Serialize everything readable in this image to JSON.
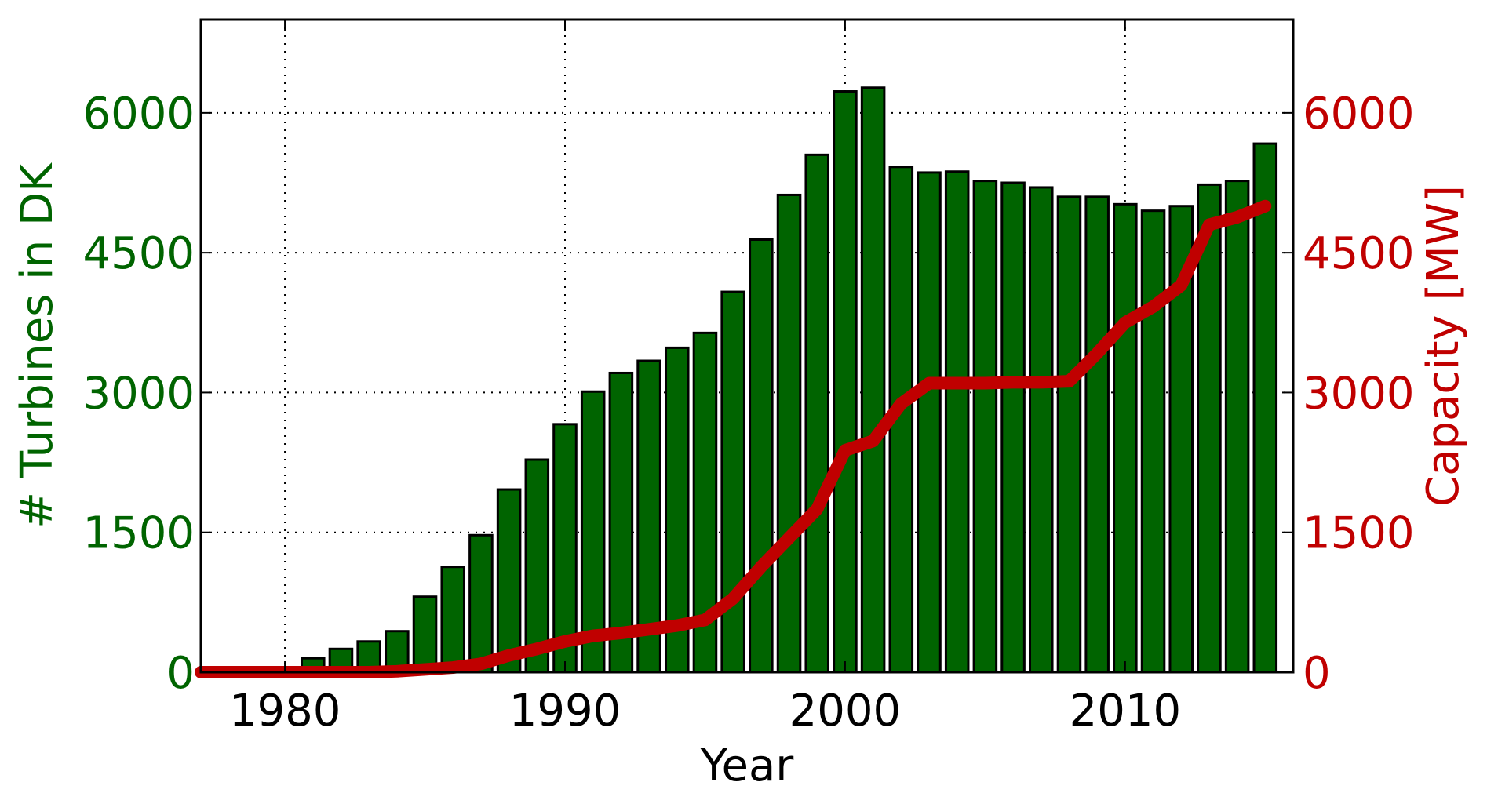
{
  "chart_data": {
    "type": "bar",
    "xlabel": "Year",
    "ylabel_left": "# Turbines in DK",
    "ylabel_right": "Capacity [MW]",
    "xlim": [
      1977,
      2016
    ],
    "ylim_left": [
      0,
      7000
    ],
    "ylim_right": [
      0,
      7000
    ],
    "x_ticks": [
      1980,
      1990,
      2000,
      2010
    ],
    "y_ticks_left": [
      0,
      1500,
      3000,
      4500,
      6000
    ],
    "y_ticks_right": [
      0,
      1500,
      3000,
      4500,
      6000
    ],
    "grid": true,
    "colors": {
      "bars": "#006400",
      "bar_edge": "#000000",
      "line": "#c00000",
      "left_axis_text": "#006400",
      "right_axis_text": "#c00000",
      "x_axis_text": "#000000"
    },
    "series": [
      {
        "type": "bar",
        "axis": "left",
        "x": [
          1977,
          1978,
          1979,
          1980,
          1981,
          1982,
          1983,
          1984,
          1985,
          1986,
          1987,
          1988,
          1989,
          1990,
          1991,
          1992,
          1993,
          1994,
          1995,
          1996,
          1997,
          1998,
          1999,
          2000,
          2001,
          2002,
          2003,
          2004,
          2005,
          2006,
          2007,
          2008,
          2009,
          2010,
          2011,
          2012,
          2013,
          2014,
          2015
        ],
        "values": [
          0,
          0,
          0,
          0,
          150,
          250,
          330,
          440,
          810,
          1130,
          1470,
          1960,
          2280,
          2660,
          3010,
          3210,
          3340,
          3480,
          3640,
          4080,
          4640,
          5120,
          5550,
          6230,
          6270,
          5420,
          5360,
          5370,
          5270,
          5250,
          5200,
          5100,
          5100,
          5020,
          4950,
          5000,
          5230,
          5270,
          5670
        ]
      },
      {
        "type": "line",
        "axis": "right",
        "x": [
          1977,
          1978,
          1979,
          1980,
          1981,
          1982,
          1983,
          1984,
          1985,
          1986,
          1987,
          1988,
          1989,
          1990,
          1991,
          1992,
          1993,
          1994,
          1995,
          1996,
          1997,
          1998,
          1999,
          2000,
          2001,
          2002,
          2003,
          2004,
          2005,
          2006,
          2007,
          2008,
          2009,
          2010,
          2011,
          2012,
          2013,
          2014,
          2015
        ],
        "values": [
          0,
          0,
          0,
          0,
          0,
          0,
          0,
          10,
          30,
          50,
          90,
          180,
          250,
          330,
          390,
          420,
          460,
          500,
          560,
          790,
          1130,
          1440,
          1750,
          2380,
          2480,
          2880,
          3100,
          3100,
          3100,
          3110,
          3110,
          3120,
          3420,
          3750,
          3920,
          4150,
          4800,
          4880,
          5000
        ]
      }
    ]
  }
}
